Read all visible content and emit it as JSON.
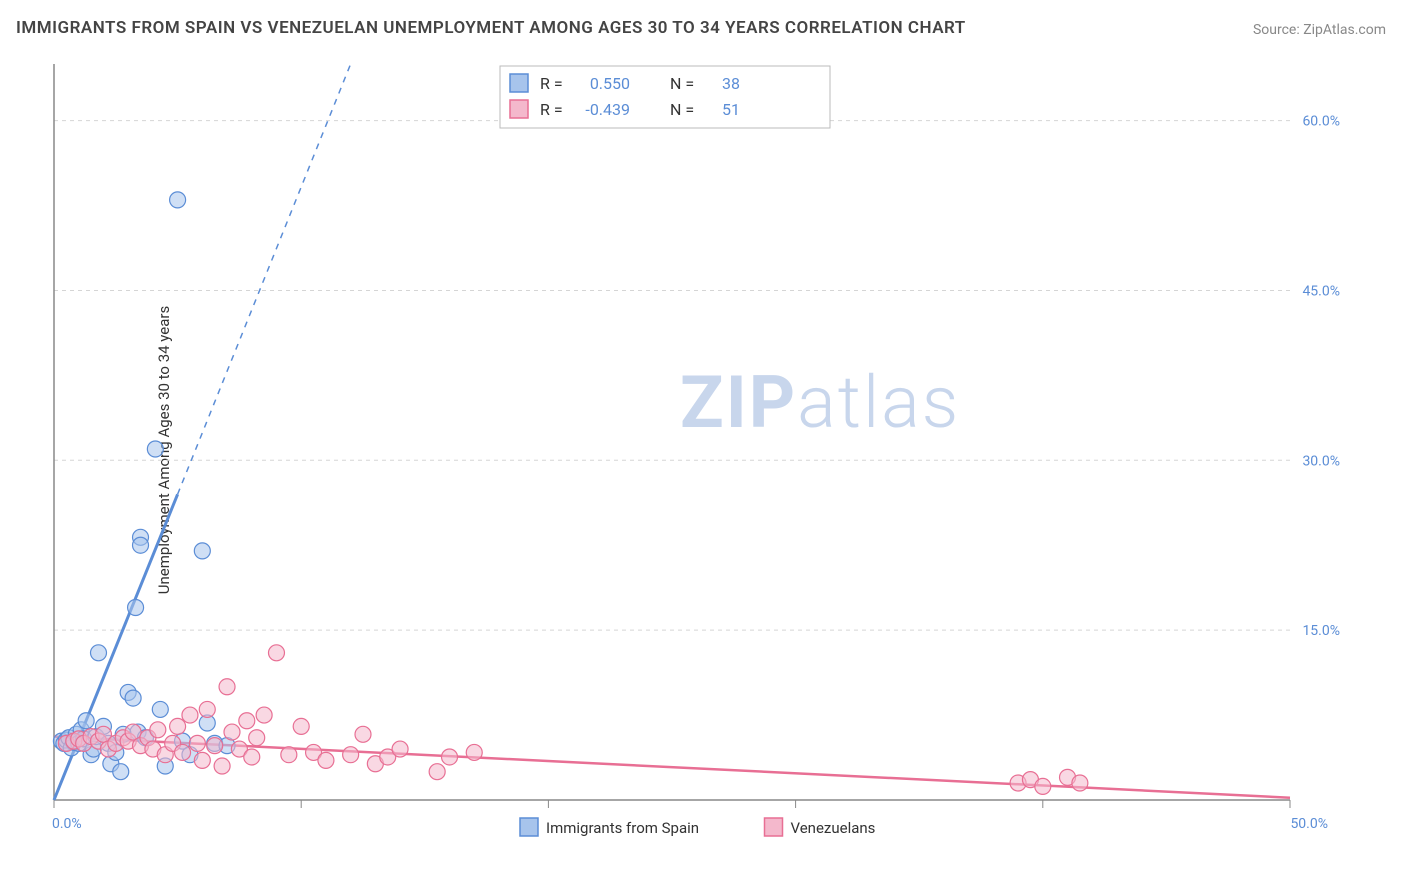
{
  "title": "IMMIGRANTS FROM SPAIN VS VENEZUELAN UNEMPLOYMENT AMONG AGES 30 TO 34 YEARS CORRELATION CHART",
  "source": "Source: ZipAtlas.com",
  "y_axis_label": "Unemployment Among Ages 30 to 34 years",
  "watermark": "ZIPatlas",
  "chart": {
    "type": "scatter",
    "background_color": "#ffffff",
    "grid_color": "#d5d5d5",
    "axis_color": "#888888",
    "tick_label_color": "#5b8dd6",
    "xlim": [
      0,
      50
    ],
    "ylim": [
      0,
      65
    ],
    "x_ticks": [
      0,
      10,
      20,
      30,
      40,
      50
    ],
    "x_tick_labels": [
      "0.0%",
      "",
      "",
      "",
      "",
      "50.0%"
    ],
    "y_ticks": [
      15,
      30,
      45,
      60
    ],
    "y_tick_labels": [
      "15.0%",
      "30.0%",
      "45.0%",
      "60.0%"
    ],
    "marker_radius": 8,
    "marker_opacity": 0.55,
    "series": [
      {
        "label": "Immigrants from Spain",
        "color": "#6d9de0",
        "fill": "#a7c4ec",
        "stroke": "#5b8dd6",
        "R": "0.550",
        "N": "38",
        "trend": {
          "x1": 0,
          "y1": 0,
          "x2": 5,
          "y2": 27,
          "dash_from_y": 27,
          "dash_to_x": 12,
          "dash_to_y": 65
        },
        "points": [
          [
            0.3,
            5.2
          ],
          [
            0.4,
            5.0
          ],
          [
            0.5,
            5.3
          ],
          [
            0.6,
            5.5
          ],
          [
            0.7,
            4.6
          ],
          [
            0.8,
            5.1
          ],
          [
            0.9,
            5.8
          ],
          [
            1.0,
            5.0
          ],
          [
            1.1,
            6.2
          ],
          [
            1.2,
            5.4
          ],
          [
            1.3,
            7.0
          ],
          [
            1.5,
            4.0
          ],
          [
            1.6,
            4.5
          ],
          [
            1.7,
            5.6
          ],
          [
            1.8,
            13.0
          ],
          [
            2.0,
            6.5
          ],
          [
            2.2,
            5.0
          ],
          [
            2.3,
            3.2
          ],
          [
            2.5,
            4.2
          ],
          [
            2.7,
            2.5
          ],
          [
            2.8,
            5.8
          ],
          [
            3.0,
            9.5
          ],
          [
            3.2,
            9.0
          ],
          [
            3.3,
            17.0
          ],
          [
            3.4,
            6.0
          ],
          [
            3.5,
            23.2
          ],
          [
            3.5,
            22.5
          ],
          [
            3.7,
            5.5
          ],
          [
            4.1,
            31.0
          ],
          [
            4.3,
            8.0
          ],
          [
            4.5,
            3.0
          ],
          [
            5.0,
            53.0
          ],
          [
            5.2,
            5.2
          ],
          [
            5.5,
            4.0
          ],
          [
            6.0,
            22.0
          ],
          [
            6.2,
            6.8
          ],
          [
            6.5,
            5.0
          ],
          [
            7.0,
            4.8
          ]
        ]
      },
      {
        "label": "Venezuelans",
        "color": "#e986a7",
        "fill": "#f4b8cc",
        "stroke": "#e86f94",
        "R": "-0.439",
        "N": "51",
        "trend": {
          "x1": 0,
          "y1": 5.6,
          "x2": 50,
          "y2": 0.2
        },
        "points": [
          [
            0.5,
            5.0
          ],
          [
            0.8,
            5.2
          ],
          [
            1.0,
            5.4
          ],
          [
            1.2,
            5.0
          ],
          [
            1.5,
            5.6
          ],
          [
            1.8,
            5.2
          ],
          [
            2.0,
            5.8
          ],
          [
            2.2,
            4.5
          ],
          [
            2.5,
            5.0
          ],
          [
            2.8,
            5.5
          ],
          [
            3.0,
            5.2
          ],
          [
            3.2,
            6.0
          ],
          [
            3.5,
            4.8
          ],
          [
            3.8,
            5.5
          ],
          [
            4.0,
            4.5
          ],
          [
            4.2,
            6.2
          ],
          [
            4.5,
            4.0
          ],
          [
            4.8,
            5.0
          ],
          [
            5.0,
            6.5
          ],
          [
            5.2,
            4.2
          ],
          [
            5.5,
            7.5
          ],
          [
            5.8,
            5.0
          ],
          [
            6.0,
            3.5
          ],
          [
            6.2,
            8.0
          ],
          [
            6.5,
            4.8
          ],
          [
            6.8,
            3.0
          ],
          [
            7.0,
            10.0
          ],
          [
            7.2,
            6.0
          ],
          [
            7.5,
            4.5
          ],
          [
            7.8,
            7.0
          ],
          [
            8.0,
            3.8
          ],
          [
            8.2,
            5.5
          ],
          [
            8.5,
            7.5
          ],
          [
            9.0,
            13.0
          ],
          [
            9.5,
            4.0
          ],
          [
            10.0,
            6.5
          ],
          [
            10.5,
            4.2
          ],
          [
            11.0,
            3.5
          ],
          [
            12.0,
            4.0
          ],
          [
            12.5,
            5.8
          ],
          [
            13.0,
            3.2
          ],
          [
            13.5,
            3.8
          ],
          [
            14.0,
            4.5
          ],
          [
            15.5,
            2.5
          ],
          [
            16.0,
            3.8
          ],
          [
            17.0,
            4.2
          ],
          [
            39.0,
            1.5
          ],
          [
            39.5,
            1.8
          ],
          [
            40.0,
            1.2
          ],
          [
            41.0,
            2.0
          ],
          [
            41.5,
            1.5
          ]
        ]
      }
    ],
    "legend_bottom": [
      {
        "label": "Immigrants from Spain",
        "fill": "#a7c4ec",
        "stroke": "#5b8dd6"
      },
      {
        "label": "Venezuelans",
        "fill": "#f4b8cc",
        "stroke": "#e86f94"
      }
    ]
  }
}
